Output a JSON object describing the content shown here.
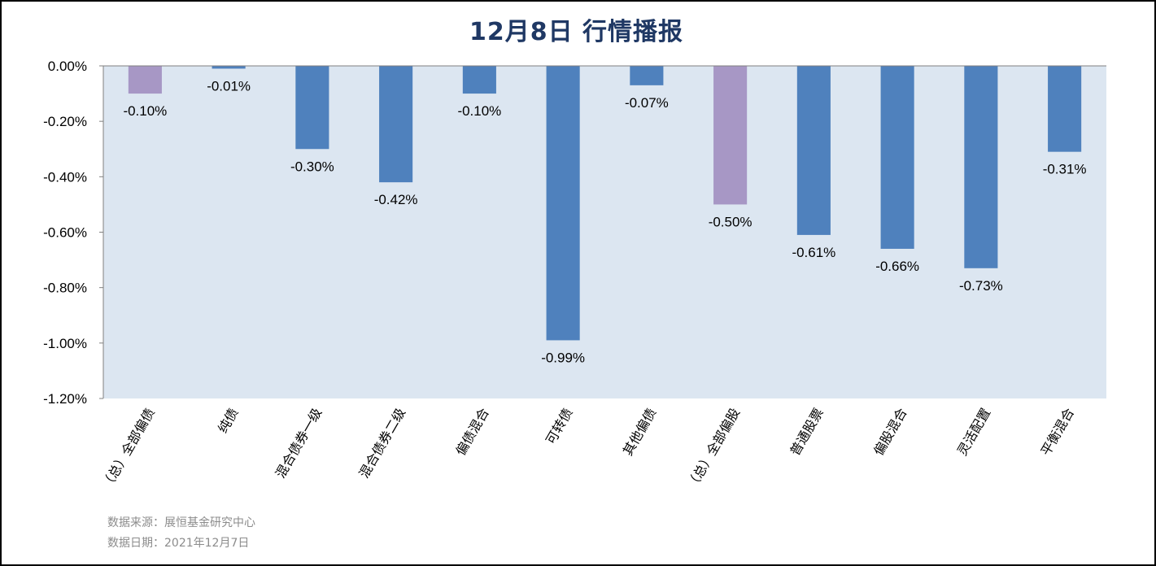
{
  "chart_data": {
    "type": "bar",
    "title": "12月8日  行情播报",
    "categories": [
      "（总）全部偏债",
      "纯债",
      "混合债券一级",
      "混合债券二级",
      "偏债混合",
      "可转债",
      "其他偏债",
      "（总）全部偏股",
      "普通股票",
      "偏股混合",
      "灵活配置",
      "平衡混合"
    ],
    "values": [
      -0.1,
      -0.01,
      -0.3,
      -0.42,
      -0.1,
      -0.99,
      -0.07,
      -0.5,
      -0.61,
      -0.66,
      -0.73,
      -0.31
    ],
    "data_labels": [
      "-0.10%",
      "-0.01%",
      "-0.30%",
      "-0.42%",
      "-0.10%",
      "-0.99%",
      "-0.07%",
      "-0.50%",
      "-0.61%",
      "-0.66%",
      "-0.73%",
      "-0.31%"
    ],
    "ylim": [
      -1.2,
      0
    ],
    "yticks": [
      "0.00%",
      "-0.20%",
      "-0.40%",
      "-0.60%",
      "-0.80%",
      "-1.00%",
      "-1.20%"
    ],
    "ytick_values": [
      0,
      -0.2,
      -0.4,
      -0.6,
      -0.8,
      -1.0,
      -1.2
    ],
    "colors": {
      "bar": "#4f81bd",
      "highlight": "#a797c5",
      "plot_bg": "#dce6f1"
    },
    "highlight_indices": [
      0,
      7
    ],
    "grid": false,
    "legend": "none"
  },
  "footer": {
    "source": "数据来源：展恒基金研究中心",
    "date": "数据日期：2021年12月7日"
  }
}
